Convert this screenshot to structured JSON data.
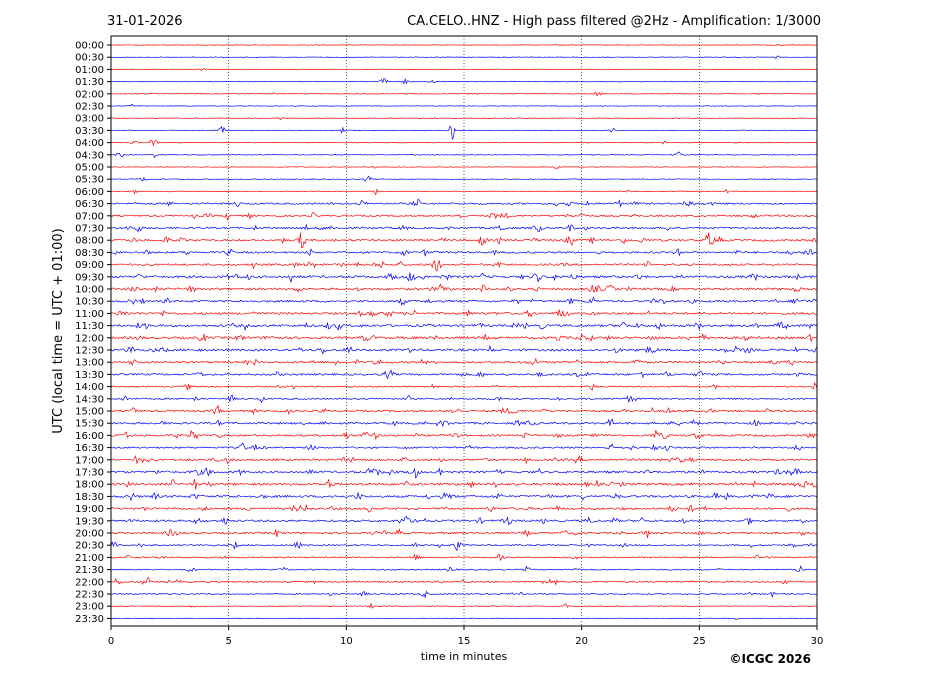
{
  "header": {
    "date": "31-01-2026",
    "station_title": "CA.CELO..HNZ - High pass filtered @2Hz - Amplification: 1/3000"
  },
  "footer": {
    "copyright": "©ICGC 2026"
  },
  "chart_data": {
    "type": "line",
    "title": "CA.CELO..HNZ - High pass filtered @2Hz - Amplification: 1/3000",
    "xlabel": "time in minutes",
    "ylabel": "UTC (local time = UTC + 01:00)",
    "xlim": [
      0,
      30
    ],
    "x_ticks": [
      "0",
      "5",
      "10",
      "15",
      "20",
      "25",
      "30"
    ],
    "x_tick_values": [
      0,
      5,
      10,
      15,
      20,
      25,
      30
    ],
    "grid": "vertical dotted lines at 5-minute intervals",
    "trace_labels": [
      "00:00",
      "00:30",
      "01:00",
      "01:30",
      "02:00",
      "02:30",
      "03:00",
      "03:30",
      "04:00",
      "04:30",
      "05:00",
      "05:30",
      "06:00",
      "06:30",
      "07:00",
      "07:30",
      "08:00",
      "08:30",
      "09:00",
      "09:30",
      "10:00",
      "10:30",
      "11:00",
      "11:30",
      "12:00",
      "12:30",
      "13:00",
      "13:30",
      "14:00",
      "14:30",
      "15:00",
      "15:30",
      "16:00",
      "16:30",
      "17:00",
      "17:30",
      "18:00",
      "18:30",
      "19:00",
      "19:30",
      "20:00",
      "20:30",
      "21:00",
      "21:30",
      "22:00",
      "22:30",
      "23:00",
      "23:30"
    ],
    "trace_colors": [
      "#ff0000",
      "#0000ff"
    ],
    "trace_activity": [
      0.02,
      0.03,
      0.03,
      0.04,
      0.03,
      0.02,
      0.03,
      0.05,
      0.04,
      0.05,
      0.05,
      0.08,
      0.1,
      0.35,
      0.35,
      0.4,
      0.45,
      0.4,
      0.42,
      0.55,
      0.5,
      0.45,
      0.5,
      0.55,
      0.55,
      0.5,
      0.45,
      0.4,
      0.25,
      0.3,
      0.4,
      0.45,
      0.4,
      0.35,
      0.45,
      0.5,
      0.55,
      0.5,
      0.45,
      0.45,
      0.4,
      0.3,
      0.25,
      0.2,
      0.3,
      0.2,
      0.08,
      0.03
    ],
    "events": [
      {
        "trace": "01:30",
        "minute": 11.6,
        "amp": 0.5
      },
      {
        "trace": "02:00",
        "minute": 20.7,
        "amp": 0.4
      },
      {
        "trace": "03:30",
        "minute": 4.7,
        "amp": 0.6
      },
      {
        "trace": "03:30",
        "minute": 14.5,
        "amp": 1.6
      },
      {
        "trace": "04:00",
        "minute": 1.8,
        "amp": 0.6
      },
      {
        "trace": "04:30",
        "minute": 24.1,
        "amp": 0.5
      },
      {
        "trace": "06:30",
        "minute": 13.0,
        "amp": 0.7
      },
      {
        "trace": "08:00",
        "minute": 8.1,
        "amp": 1.3
      },
      {
        "trace": "08:00",
        "minute": 15.8,
        "amp": 0.9
      },
      {
        "trace": "08:00",
        "minute": 25.4,
        "amp": 0.9
      },
      {
        "trace": "09:00",
        "minute": 13.8,
        "amp": 1.1
      },
      {
        "trace": "09:30",
        "minute": 18.1,
        "amp": 0.8
      },
      {
        "trace": "16:00",
        "minute": 3.5,
        "amp": 1.0
      },
      {
        "trace": "16:00",
        "minute": 23.2,
        "amp": 0.9
      },
      {
        "trace": "17:00",
        "minute": 5.0,
        "amp": 0.6
      },
      {
        "trace": "17:30",
        "minute": 12.9,
        "amp": 1.0
      },
      {
        "trace": "19:30",
        "minute": 12.4,
        "amp": 0.6
      },
      {
        "trace": "20:30",
        "minute": 14.7,
        "amp": 0.8
      },
      {
        "trace": "21:30",
        "minute": 29.3,
        "amp": 0.7
      },
      {
        "trace": "22:00",
        "minute": 1.5,
        "amp": 0.9
      }
    ]
  }
}
